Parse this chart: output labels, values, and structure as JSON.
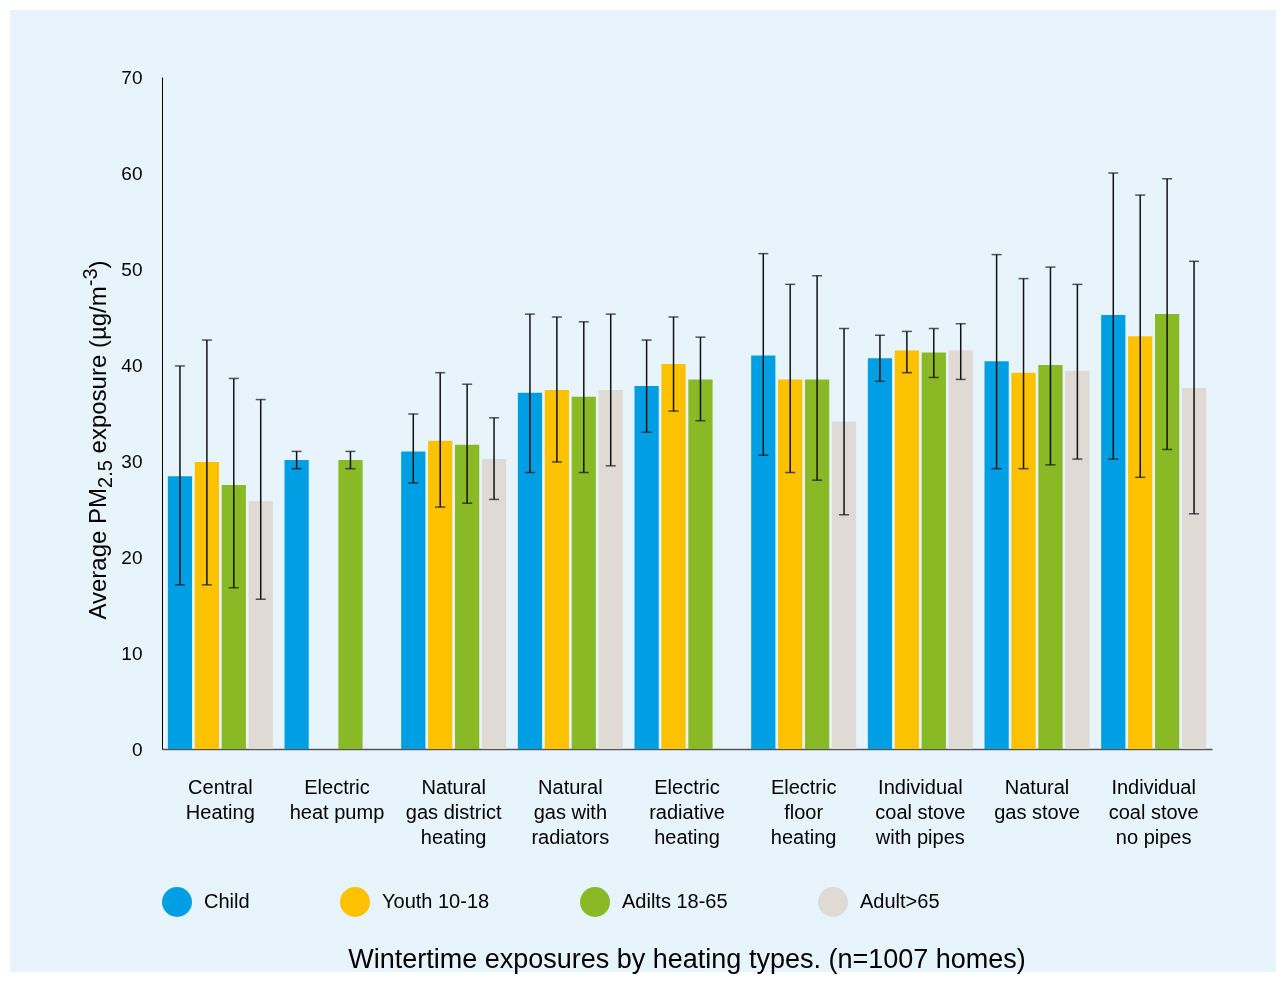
{
  "chart_data": {
    "type": "bar",
    "title": "Wintertime exposures by heating types. (n=1007 homes)",
    "ylabel": "Average PM$_{2.5}$ exposure (µg/m$^{-3}$)",
    "categories": [
      "Central Heating",
      "Electric heat pump",
      "Natural gas district heating",
      "Natural gas with radiators",
      "Electric radiative heating",
      "Electric floor heating",
      "Individual coal stove with pipes",
      "Natural gas stove",
      "Individual coal stove no pipes"
    ],
    "ylim": [
      0,
      70
    ],
    "yticks": [
      0,
      10,
      20,
      30,
      40,
      50,
      60,
      70
    ],
    "legend": "bottom",
    "series": [
      {
        "name": "Child",
        "color": "#009fe3",
        "values": [
          28.4,
          30.1,
          31.0,
          37.1,
          37.8,
          41.0,
          40.7,
          40.4,
          45.2
        ],
        "errors": [
          [
            17.1,
            39.9
          ],
          [
            29.2,
            31.0
          ],
          [
            27.7,
            34.9
          ],
          [
            28.8,
            45.3
          ],
          [
            33.0,
            42.6
          ],
          [
            30.6,
            51.6
          ],
          [
            38.3,
            43.1
          ],
          [
            29.2,
            51.5
          ],
          [
            30.2,
            60.0
          ]
        ]
      },
      {
        "name": "Youth 10-18",
        "color": "#fcc200",
        "values": [
          29.9,
          null,
          32.1,
          37.4,
          40.1,
          38.5,
          41.5,
          39.2,
          43.0
        ],
        "errors": [
          [
            17.1,
            42.6
          ],
          null,
          [
            25.2,
            39.2
          ],
          [
            29.9,
            45.0
          ],
          [
            35.2,
            45.0
          ],
          [
            28.8,
            48.4
          ],
          [
            39.2,
            43.5
          ],
          [
            29.2,
            49.0
          ],
          [
            28.3,
            57.7
          ]
        ]
      },
      {
        "name": "Adilts 18-65",
        "color": "#89b925",
        "values": [
          27.5,
          30.1,
          31.7,
          36.7,
          38.5,
          38.5,
          41.3,
          40.0,
          45.3
        ],
        "errors": [
          [
            16.8,
            38.6
          ],
          [
            29.2,
            31.0
          ],
          [
            25.6,
            38.0
          ],
          [
            28.8,
            44.5
          ],
          [
            34.2,
            42.9
          ],
          [
            28.0,
            49.3
          ],
          [
            38.7,
            43.8
          ],
          [
            29.6,
            50.2
          ],
          [
            31.2,
            59.4
          ]
        ]
      },
      {
        "name": "Adult>65",
        "color": "#e0dad4",
        "values": [
          25.8,
          null,
          30.2,
          37.4,
          null,
          34.1,
          41.5,
          39.4,
          37.6
        ],
        "errors": [
          [
            15.6,
            36.4
          ],
          null,
          [
            26.0,
            34.5
          ],
          [
            29.5,
            45.3
          ],
          null,
          [
            24.4,
            43.8
          ],
          [
            38.5,
            44.3
          ],
          [
            30.2,
            48.4
          ],
          [
            24.5,
            50.8
          ]
        ]
      }
    ]
  }
}
